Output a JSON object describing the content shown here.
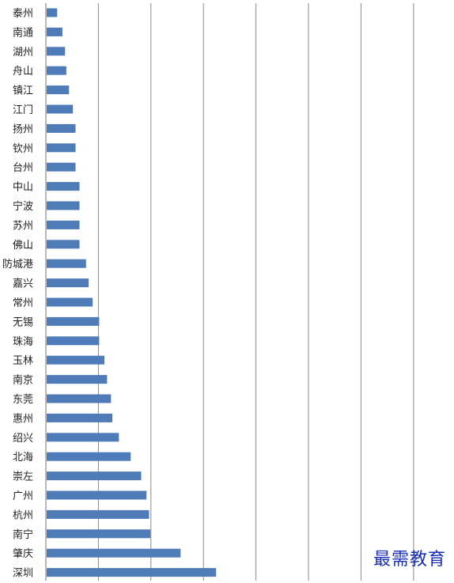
{
  "chart_data": {
    "type": "bar",
    "orientation": "horizontal",
    "categories": [
      "泰州",
      "南通",
      "湖州",
      "舟山",
      "镇江",
      "江门",
      "扬州",
      "钦州",
      "台州",
      "中山",
      "宁波",
      "苏州",
      "佛山",
      "防城港",
      "嘉兴",
      "常州",
      "无锡",
      "珠海",
      "玉林",
      "南京",
      "东莞",
      "惠州",
      "绍兴",
      "北海",
      "崇左",
      "广州",
      "杭州",
      "南宁",
      "肇庆",
      "深圳"
    ],
    "values": [
      0.4,
      0.6,
      0.7,
      0.75,
      0.85,
      1.0,
      1.1,
      1.1,
      1.1,
      1.25,
      1.25,
      1.25,
      1.25,
      1.5,
      1.6,
      1.75,
      2.0,
      2.0,
      2.2,
      2.3,
      2.45,
      2.5,
      2.75,
      3.2,
      3.6,
      3.8,
      3.9,
      3.95,
      5.1,
      6.45
    ],
    "xlim": [
      0,
      15.3
    ],
    "grid": true,
    "bar_color": "#4f7cb8",
    "grid_color": "#8a8a8a",
    "title": "",
    "xlabel": "",
    "ylabel": ""
  },
  "watermark": "最需教育"
}
